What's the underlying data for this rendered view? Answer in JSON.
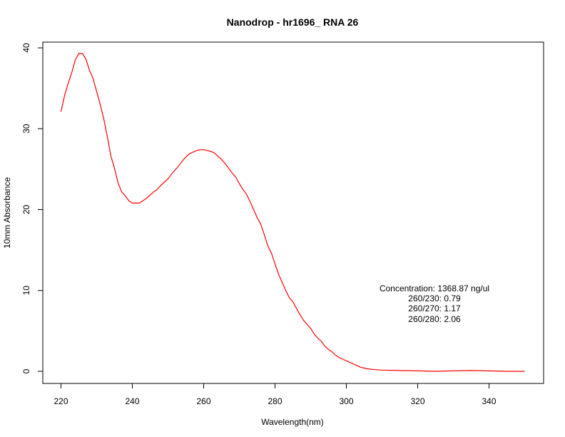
{
  "chart_data": {
    "type": "line",
    "title": "Nanodrop - hr1696_ RNA 26",
    "xlabel": "Wavelength(nm)",
    "ylabel": "10mm Absorbance",
    "xlim": [
      220,
      350
    ],
    "ylim": [
      0,
      40
    ],
    "xticks": [
      220,
      240,
      260,
      280,
      300,
      320,
      340
    ],
    "yticks": [
      0,
      10,
      20,
      30,
      40
    ],
    "grid": false,
    "line_color": "#ff0000",
    "series": [
      {
        "x": [
          220,
          221,
          222,
          223,
          224,
          225,
          226,
          227,
          228,
          229,
          230,
          231,
          232,
          233,
          234,
          235,
          236,
          237,
          238,
          239,
          240,
          241,
          242,
          243,
          244,
          245,
          246,
          247,
          248,
          249,
          250,
          251,
          252,
          253,
          254,
          255,
          256,
          257,
          258,
          259,
          260,
          261,
          262,
          263,
          264,
          265,
          266,
          267,
          268,
          269,
          270,
          271,
          272,
          273,
          274,
          275,
          276,
          277,
          278,
          279,
          280,
          281,
          282,
          283,
          284,
          285,
          286,
          287,
          288,
          289,
          290,
          291,
          292,
          293,
          294,
          295,
          296,
          297,
          298,
          299,
          300,
          302,
          304,
          306,
          308,
          310,
          315,
          320,
          325,
          330,
          335,
          340,
          345,
          350
        ],
        "y": [
          32.1,
          34.1,
          35.6,
          36.9,
          38.5,
          39.3,
          39.3,
          38.6,
          37.2,
          36.2,
          34.6,
          33.0,
          31.2,
          29.0,
          26.6,
          25.1,
          23.3,
          22.2,
          21.7,
          21.1,
          20.8,
          20.8,
          20.8,
          21.1,
          21.4,
          21.8,
          22.2,
          22.5,
          23.0,
          23.4,
          23.8,
          24.4,
          24.9,
          25.4,
          26.0,
          26.5,
          26.9,
          27.1,
          27.3,
          27.4,
          27.4,
          27.3,
          27.2,
          27.0,
          26.6,
          26.2,
          25.7,
          25.1,
          24.5,
          24.0,
          23.2,
          22.5,
          21.9,
          21.0,
          20.0,
          19.0,
          18.2,
          16.9,
          15.5,
          14.6,
          13.3,
          12.0,
          11.0,
          10.0,
          9.1,
          8.6,
          7.8,
          7.0,
          6.3,
          5.8,
          5.3,
          4.6,
          4.1,
          3.7,
          3.1,
          2.7,
          2.4,
          2.0,
          1.7,
          1.5,
          1.3,
          0.9,
          0.5,
          0.3,
          0.2,
          0.15,
          0.1,
          0.05,
          0.0,
          0.05,
          0.1,
          0.05,
          0.0,
          0.0
        ]
      }
    ],
    "annotations": [
      "Concentration: 1368.87 ng/ul",
      "260/230: 0.79",
      "260/270: 1.17",
      "260/280: 2.06"
    ]
  }
}
